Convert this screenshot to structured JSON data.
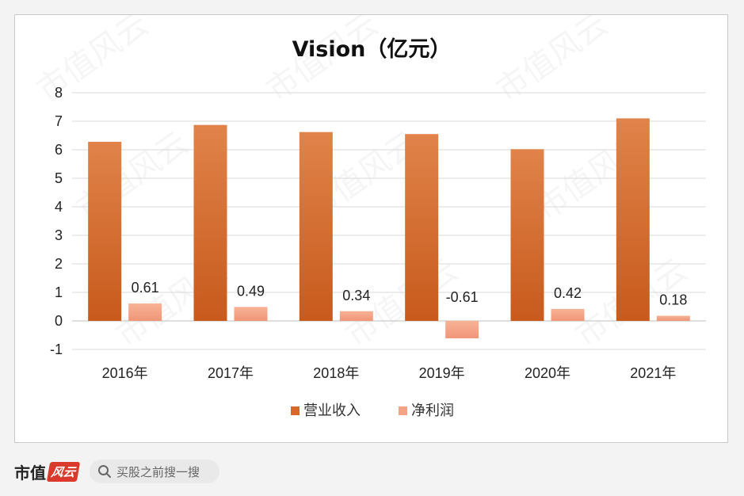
{
  "chart_data": {
    "type": "bar",
    "title": "Vision（亿元）",
    "categories": [
      "2016年",
      "2017年",
      "2018年",
      "2019年",
      "2020年",
      "2021年"
    ],
    "series": [
      {
        "name": "营业收入",
        "values": [
          6.28,
          6.87,
          6.62,
          6.55,
          6.02,
          7.1
        ],
        "color": "#d8692a",
        "data_labels": false
      },
      {
        "name": "净利润",
        "values": [
          0.61,
          0.49,
          0.34,
          -0.61,
          0.42,
          0.18
        ],
        "color": "#f4a384",
        "data_labels": true
      }
    ],
    "ylim": [
      -1,
      8
    ],
    "yticks": [
      -1,
      0,
      1,
      2,
      3,
      4,
      5,
      6,
      7,
      8
    ],
    "xlabel": "",
    "ylabel": "",
    "grid": true,
    "legend_position": "bottom"
  },
  "watermark": "市值风云",
  "footer": {
    "brand": "市值",
    "brand_badge": "风云",
    "search_placeholder": "买股之前搜一搜",
    "search_icon": "search-icon"
  }
}
